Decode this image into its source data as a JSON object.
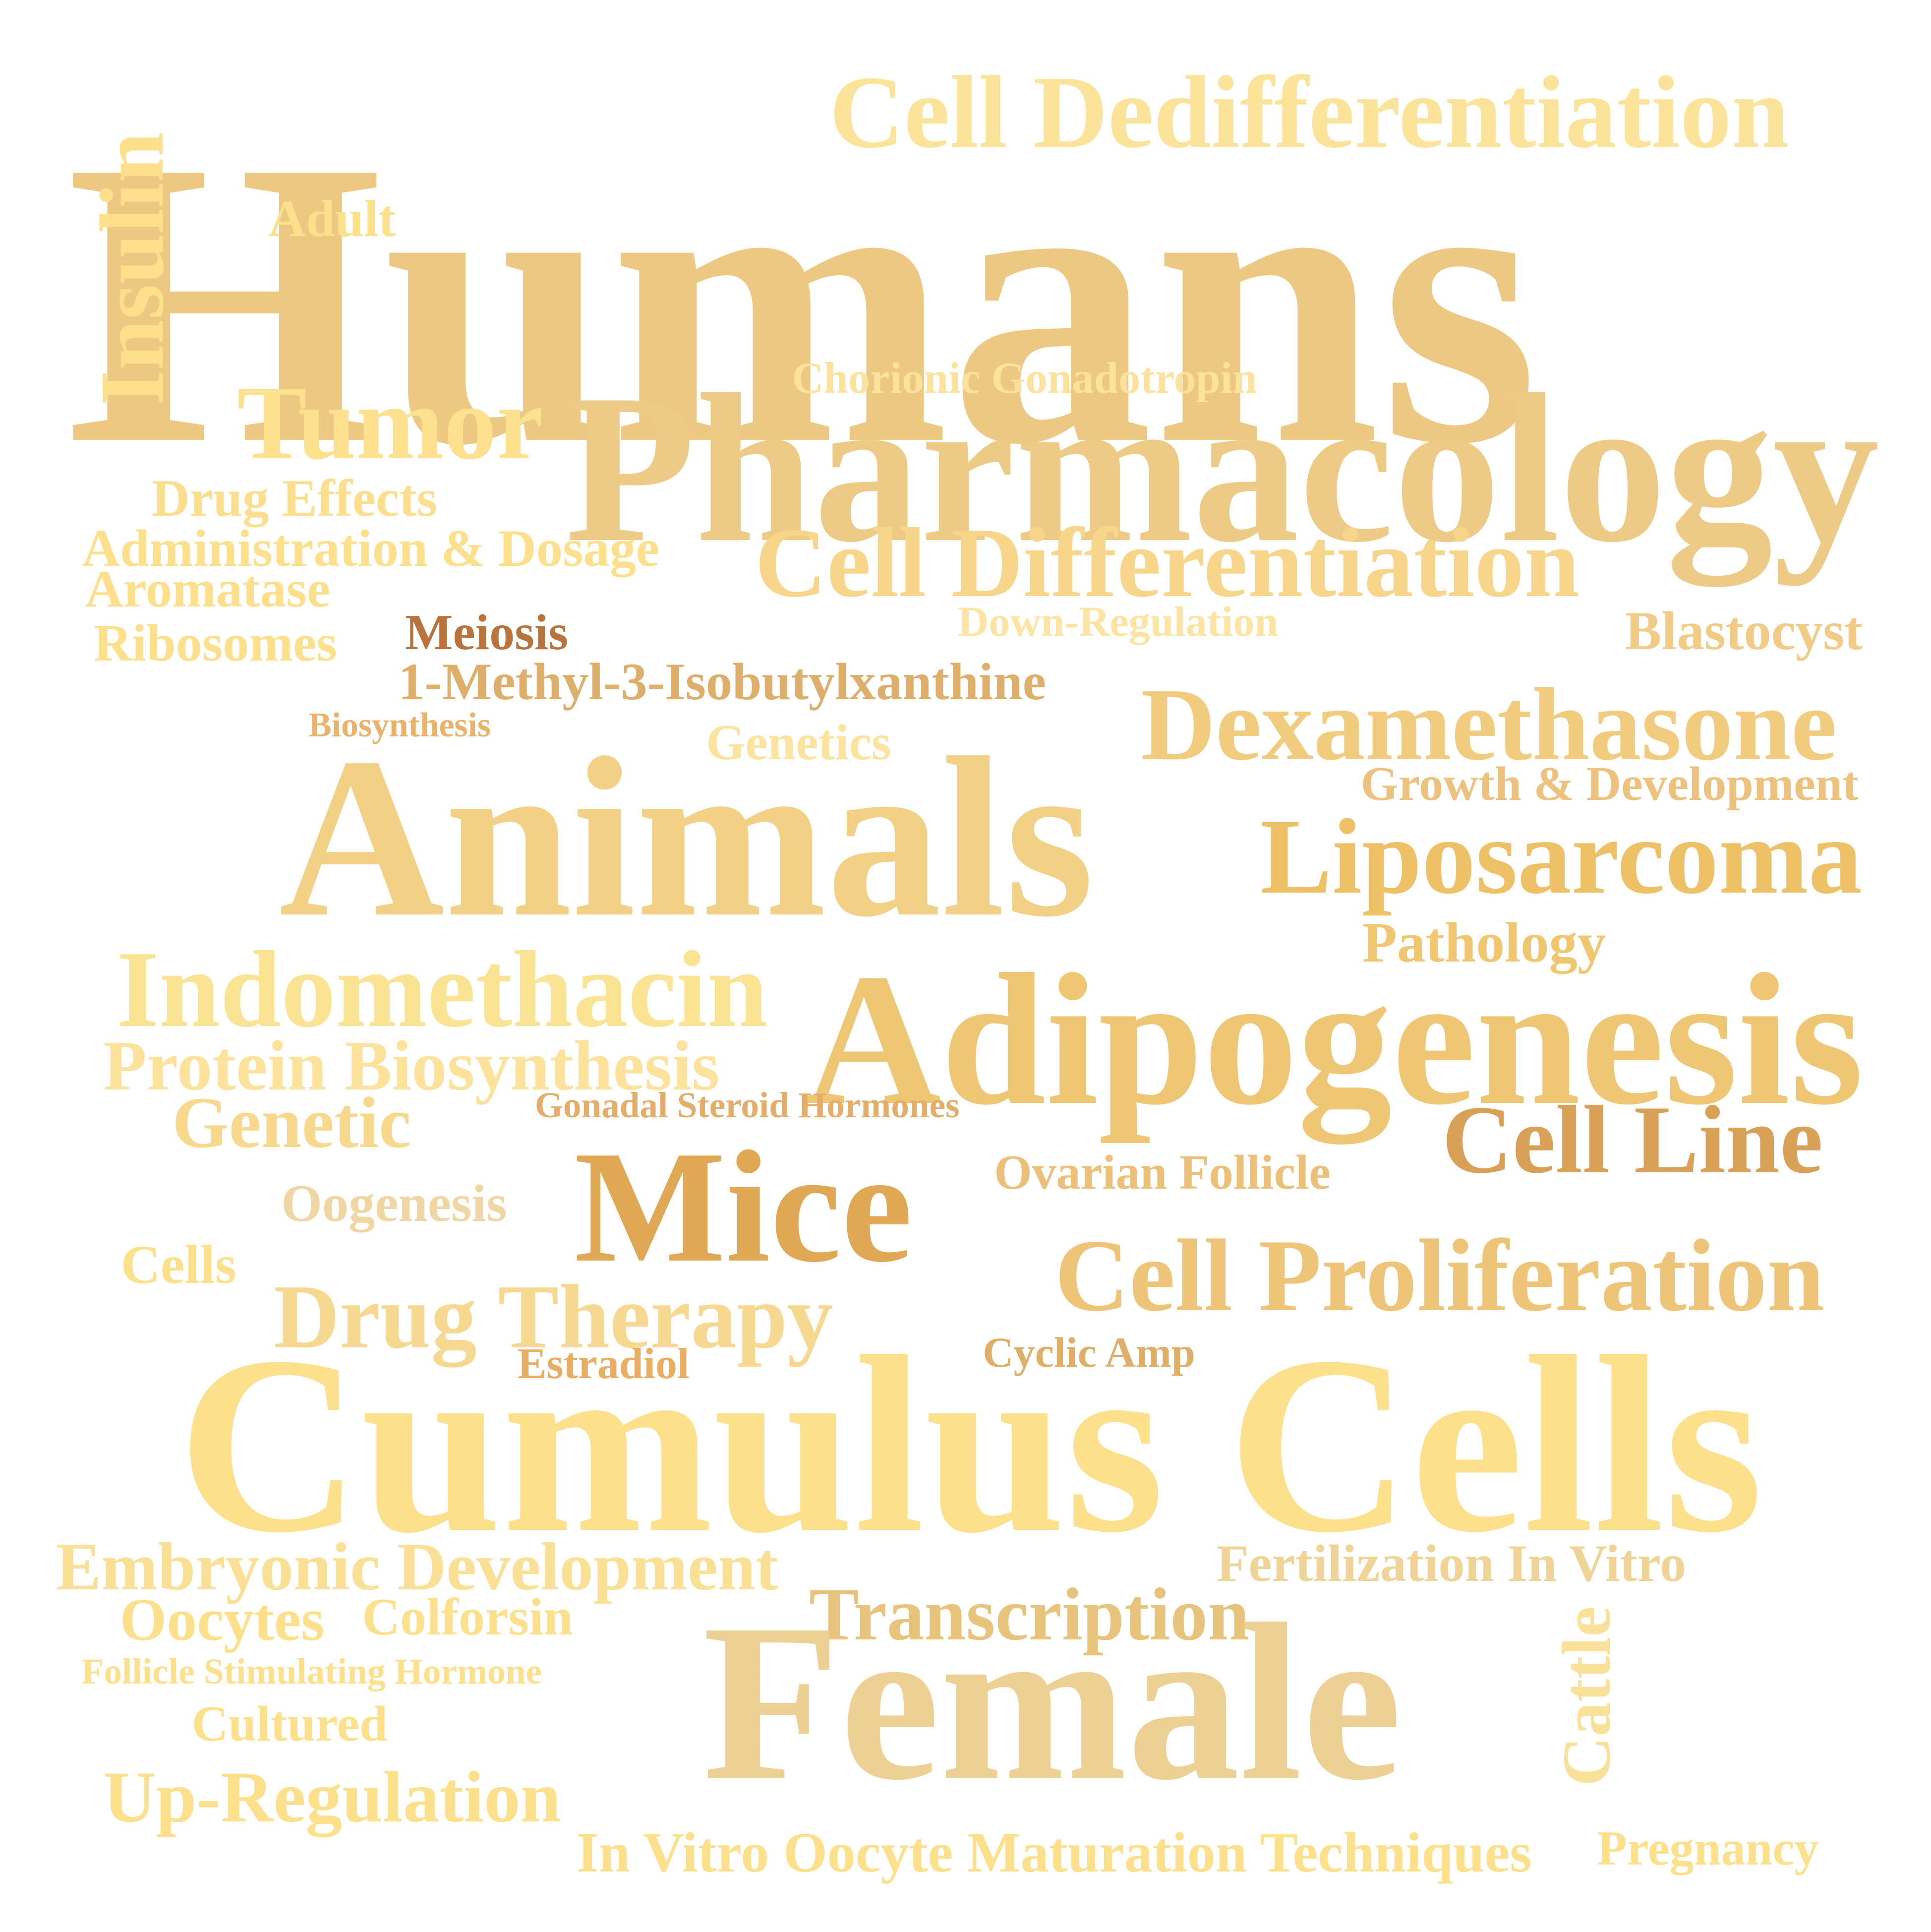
{
  "words": [
    {
      "text": "Humans",
      "color": "#ECC882"
    },
    {
      "text": "Cell Dedifferentiation",
      "color": "#FCE39A"
    },
    {
      "text": "Insulin",
      "color": "#FEE08C"
    },
    {
      "text": "Adult",
      "color": "#FDE08C"
    },
    {
      "text": "Chorionic Gonadotropin",
      "color": "#FBE39E"
    },
    {
      "text": "Tumor",
      "color": "#FDE18F"
    },
    {
      "text": "Pharmacology",
      "color": "#EDCB86"
    },
    {
      "text": "Drug Effects",
      "color": "#FCDF8E"
    },
    {
      "text": "Administration & Dosage",
      "color": "#FDE08C"
    },
    {
      "text": "Aromatase",
      "color": "#FEE08C"
    },
    {
      "text": "Cell Differentiation",
      "color": "#F7D68B"
    },
    {
      "text": "Down-Regulation",
      "color": "#FCE4A2"
    },
    {
      "text": "Blastocyst",
      "color": "#F2CC86"
    },
    {
      "text": "Ribosomes",
      "color": "#FDE08C"
    },
    {
      "text": "Meiosis",
      "color": "#B9743D"
    },
    {
      "text": "1-Methyl-3-Isobutylxanthine",
      "color": "#DEAE6B"
    },
    {
      "text": "Biosynthesis",
      "color": "#EAB26A"
    },
    {
      "text": "Genetics",
      "color": "#FCE39E"
    },
    {
      "text": "Dexamethasone",
      "color": "#F2CC7E"
    },
    {
      "text": "Growth & Development",
      "color": "#EDC27E"
    },
    {
      "text": "Animals",
      "color": "#F2D086"
    },
    {
      "text": "Liposarcoma",
      "color": "#EFC167"
    },
    {
      "text": "Pathology",
      "color": "#F0C670"
    },
    {
      "text": "Indomethacin",
      "color": "#FBE394"
    },
    {
      "text": "Adipogenesis",
      "color": "#EFC774"
    },
    {
      "text": "Protein Biosynthesis",
      "color": "#FCE29A"
    },
    {
      "text": "Genetic",
      "color": "#F7D88C"
    },
    {
      "text": "Gonadal Steroid Hormones",
      "color": "#E4AE6A"
    },
    {
      "text": "Cell Line",
      "color": "#D9A058"
    },
    {
      "text": "Mice",
      "color": "#E0A855"
    },
    {
      "text": "Ovarian Follicle",
      "color": "#EDC07A"
    },
    {
      "text": "Oogenesis",
      "color": "#EFD6A2"
    },
    {
      "text": "Cells",
      "color": "#FDE08C"
    },
    {
      "text": "Cell Proliferation",
      "color": "#EEC479"
    },
    {
      "text": "Drug Therapy",
      "color": "#F6D890"
    },
    {
      "text": "Estradiol",
      "color": "#E9AE63"
    },
    {
      "text": "Cyclic Amp",
      "color": "#DFAF68"
    },
    {
      "text": "Cumulus Cells",
      "color": "#FDE08C"
    },
    {
      "text": "Embryonic Development",
      "color": "#FAE094"
    },
    {
      "text": "Fertilization In Vitro",
      "color": "#EFD397"
    },
    {
      "text": "Transcription",
      "color": "#E8C37C"
    },
    {
      "text": "Oocytes",
      "color": "#FDE08C"
    },
    {
      "text": "Colforsin",
      "color": "#FDE08C"
    },
    {
      "text": "Follicle Stimulating Hormone",
      "color": "#FDE08C"
    },
    {
      "text": "Cattle",
      "color": "#FAE19A"
    },
    {
      "text": "Female",
      "color": "#EDD194"
    },
    {
      "text": "Cultured",
      "color": "#FDE08C"
    },
    {
      "text": "Up-Regulation",
      "color": "#FDE08C"
    },
    {
      "text": "In Vitro Oocyte Maturation Techniques",
      "color": "#FDE08C"
    },
    {
      "text": "Pregnancy",
      "color": "#FDE08C"
    }
  ]
}
